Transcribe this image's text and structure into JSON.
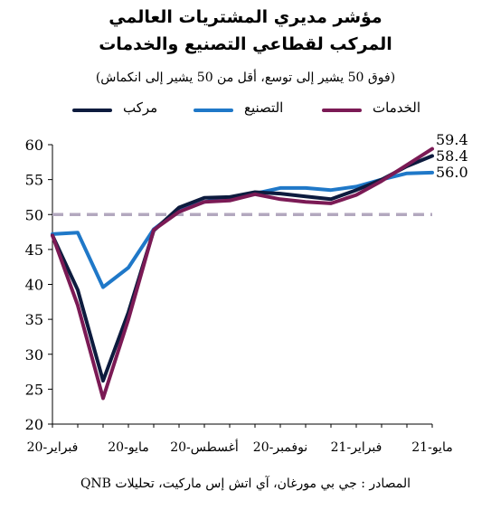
{
  "header": {
    "title_line1": "مؤشر مديري المشتريات العالمي",
    "title_line2": "المركب لقطاعي التصنيع والخدمات",
    "subtitle": "(فوق 50 يشير إلى توسع، أقل من 50 يشير إلى انكماش)"
  },
  "legend": {
    "composite": "مركب",
    "manufacturing": "التصنيع",
    "services": "الخدمات"
  },
  "colors": {
    "composite": "#0d1b3e",
    "manufacturing": "#1f78c8",
    "services": "#7b1a55",
    "threshold": "#b3a8bf"
  },
  "source": "المصادر : جي بي مورغان، آي اتش إس ماركيت، تحليلات QNB",
  "chart_data": {
    "type": "line",
    "x": [
      "2020-02",
      "2020-03",
      "2020-04",
      "2020-05",
      "2020-06",
      "2020-07",
      "2020-08",
      "2020-09",
      "2020-10",
      "2020-11",
      "2020-12",
      "2021-01",
      "2021-02",
      "2021-03",
      "2021-04",
      "2021-05"
    ],
    "x_tick_labels": [
      "فبراير-20",
      "مايو-20",
      "أغسطس-20",
      "نوفمبر-20",
      "فبراير-21",
      "مايو-21"
    ],
    "x_tick_positions": [
      "2020-02",
      "2020-05",
      "2020-08",
      "2020-11",
      "2021-02",
      "2021-05"
    ],
    "ylim": [
      20,
      60
    ],
    "y_ticks": [
      20,
      25,
      30,
      35,
      40,
      45,
      50,
      55,
      60
    ],
    "threshold": 50,
    "series": [
      {
        "key": "manufacturing",
        "name": "التصنيع",
        "values": [
          47.2,
          47.4,
          39.6,
          42.4,
          47.9,
          50.6,
          51.8,
          52.4,
          53.0,
          53.8,
          53.8,
          53.5,
          54.0,
          55.0,
          55.9,
          56.0
        ]
      },
      {
        "key": "composite",
        "name": "مركب",
        "values": [
          47.0,
          39.2,
          26.2,
          36.0,
          47.7,
          51.0,
          52.4,
          52.5,
          53.2,
          53.0,
          52.6,
          52.2,
          53.5,
          55.0,
          56.9,
          58.4
        ]
      },
      {
        "key": "services",
        "name": "الخدمات",
        "values": [
          47.0,
          37.0,
          23.7,
          35.0,
          47.8,
          50.4,
          51.8,
          52.0,
          52.9,
          52.2,
          51.8,
          51.6,
          52.8,
          54.8,
          57.1,
          59.4
        ]
      }
    ],
    "end_labels": {
      "services": "59.4",
      "composite": "58.4",
      "manufacturing": "56.0"
    },
    "grid": false,
    "legend_position": "top"
  }
}
